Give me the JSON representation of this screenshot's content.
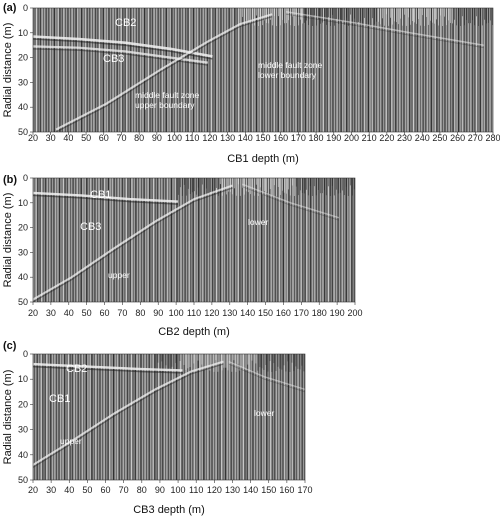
{
  "panels": [
    {
      "letter": "(a)",
      "xlabel": "CB1 depth (m)",
      "ylabel": "Radial distance (m)",
      "xticks": [
        "20",
        "30",
        "40",
        "50",
        "60",
        "70",
        "80",
        "90",
        "100",
        "110",
        "120",
        "130",
        "140",
        "150",
        "160",
        "170",
        "180",
        "190",
        "200",
        "210",
        "220",
        "230",
        "240",
        "250",
        "260",
        "270",
        "280"
      ],
      "yticks": [
        "0",
        "10",
        "20",
        "30",
        "40",
        "50"
      ],
      "annotations": [
        {
          "lines": [
            "CB2"
          ],
          "size": "big"
        },
        {
          "lines": [
            "CB3"
          ],
          "size": "big"
        },
        {
          "lines": [
            "middle fault zone",
            "upper boundary"
          ],
          "size": "small"
        },
        {
          "lines": [
            "middle fault zone",
            "lower boundary"
          ],
          "size": "small"
        }
      ]
    },
    {
      "letter": "(b)",
      "xlabel": "CB2 depth (m)",
      "ylabel": "Radial distance (m)",
      "xticks": [
        "20",
        "30",
        "40",
        "50",
        "60",
        "70",
        "80",
        "90",
        "100",
        "110",
        "120",
        "130",
        "140",
        "150",
        "160",
        "170",
        "180",
        "190",
        "200"
      ],
      "yticks": [
        "0",
        "10",
        "20",
        "30",
        "40",
        "50"
      ],
      "annotations": [
        {
          "lines": [
            "CB1"
          ],
          "size": "big"
        },
        {
          "lines": [
            "CB3"
          ],
          "size": "big"
        },
        {
          "lines": [
            "lower"
          ],
          "size": "small"
        },
        {
          "lines": [
            "upper"
          ],
          "size": "small"
        }
      ]
    },
    {
      "letter": "(c)",
      "xlabel": "CB3 depth (m)",
      "ylabel": "Radial distance (m)",
      "xticks": [
        "20",
        "30",
        "40",
        "50",
        "60",
        "70",
        "80",
        "90",
        "100",
        "110",
        "120",
        "130",
        "140",
        "150",
        "160",
        "170"
      ],
      "yticks": [
        "0",
        "10",
        "20",
        "30",
        "40",
        "50"
      ],
      "annotations": [
        {
          "lines": [
            "CB2"
          ],
          "size": "big"
        },
        {
          "lines": [
            "CB1"
          ],
          "size": "big"
        },
        {
          "lines": [
            "lower"
          ],
          "size": "small"
        },
        {
          "lines": [
            "upper"
          ],
          "size": "small"
        }
      ]
    }
  ]
}
